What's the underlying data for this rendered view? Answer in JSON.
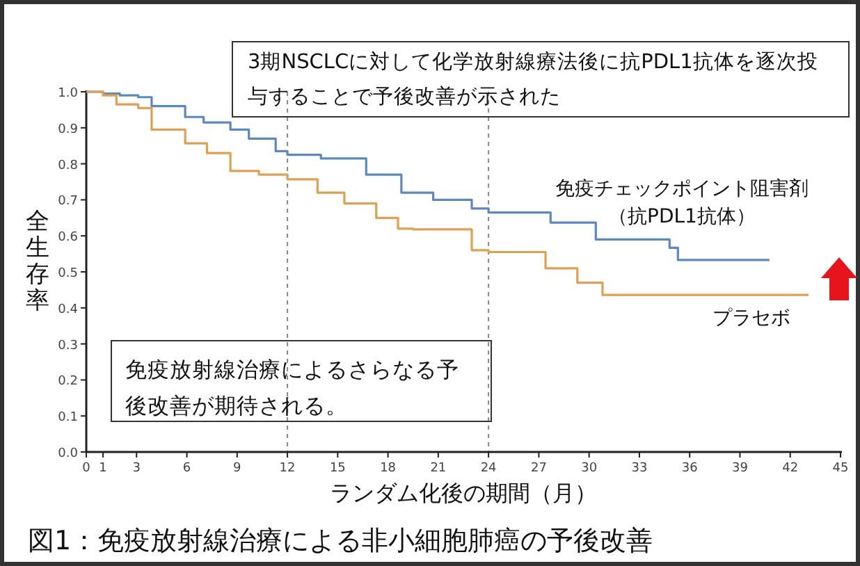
{
  "chart_data": {
    "type": "step",
    "title": "図1：免疫放射線治療による非小細胞肺癌の予後改善",
    "xlabel": "ランダム化後の期間（月）",
    "ylabel": "全生存率",
    "xlim": [
      0,
      45
    ],
    "xticks": [
      0,
      1,
      3,
      6,
      9,
      12,
      15,
      18,
      21,
      24,
      27,
      30,
      33,
      36,
      39,
      42,
      45
    ],
    "ylim": [
      0,
      1
    ],
    "yticks": [
      {
        "value": 0,
        "label": "0.0"
      },
      0.1,
      0.2,
      0.3,
      0.4,
      0.5,
      0.6,
      0.7,
      0.8,
      0.9,
      {
        "value": 1,
        "label": "1.0"
      }
    ],
    "series": [
      {
        "name": "免疫チェックポイント阻害剤（抗PDL1抗体）",
        "color": "#5b87c5",
        "x": [
          0,
          1,
          2,
          3.1,
          3.9,
          5.9,
          7,
          8.6,
          9.7,
          11.3,
          12,
          14,
          16.7,
          18.8,
          20.7,
          23,
          24,
          27.7,
          30.4,
          34.8,
          35.3,
          40.7
        ],
        "values": [
          1.0,
          0.995,
          0.99,
          0.985,
          0.96,
          0.93,
          0.915,
          0.895,
          0.87,
          0.835,
          0.825,
          0.815,
          0.77,
          0.72,
          0.7,
          0.676,
          0.665,
          0.637,
          0.59,
          0.567,
          0.533,
          0.53
        ]
      },
      {
        "name": "プラセボ",
        "color": "#e0a050",
        "x": [
          0,
          1,
          1.8,
          3.1,
          3.9,
          5.9,
          7.2,
          8.6,
          10.3,
          12,
          13.8,
          15.4,
          17.3,
          18.6,
          19.5,
          23,
          24,
          27.4,
          29.3,
          30.8,
          43.1
        ],
        "values": [
          1.0,
          0.99,
          0.965,
          0.955,
          0.895,
          0.857,
          0.83,
          0.78,
          0.77,
          0.757,
          0.72,
          0.69,
          0.65,
          0.62,
          0.618,
          0.56,
          0.555,
          0.51,
          0.47,
          0.436,
          0.436
        ]
      }
    ],
    "ref_lines": [
      {
        "axis": "x",
        "value": 12,
        "color": "#888888",
        "line_style": "dashed"
      },
      {
        "axis": "x",
        "value": 24,
        "color": "#888888",
        "line_style": "dashed"
      }
    ],
    "annotations": [
      "3期NSCLCに対して化学放射線療法後に抗PDL1抗体を逐次投与することで予後改善が示された",
      "免疫放射線治療によるさらなる予後改善が期待される。"
    ],
    "grid": false
  }
}
